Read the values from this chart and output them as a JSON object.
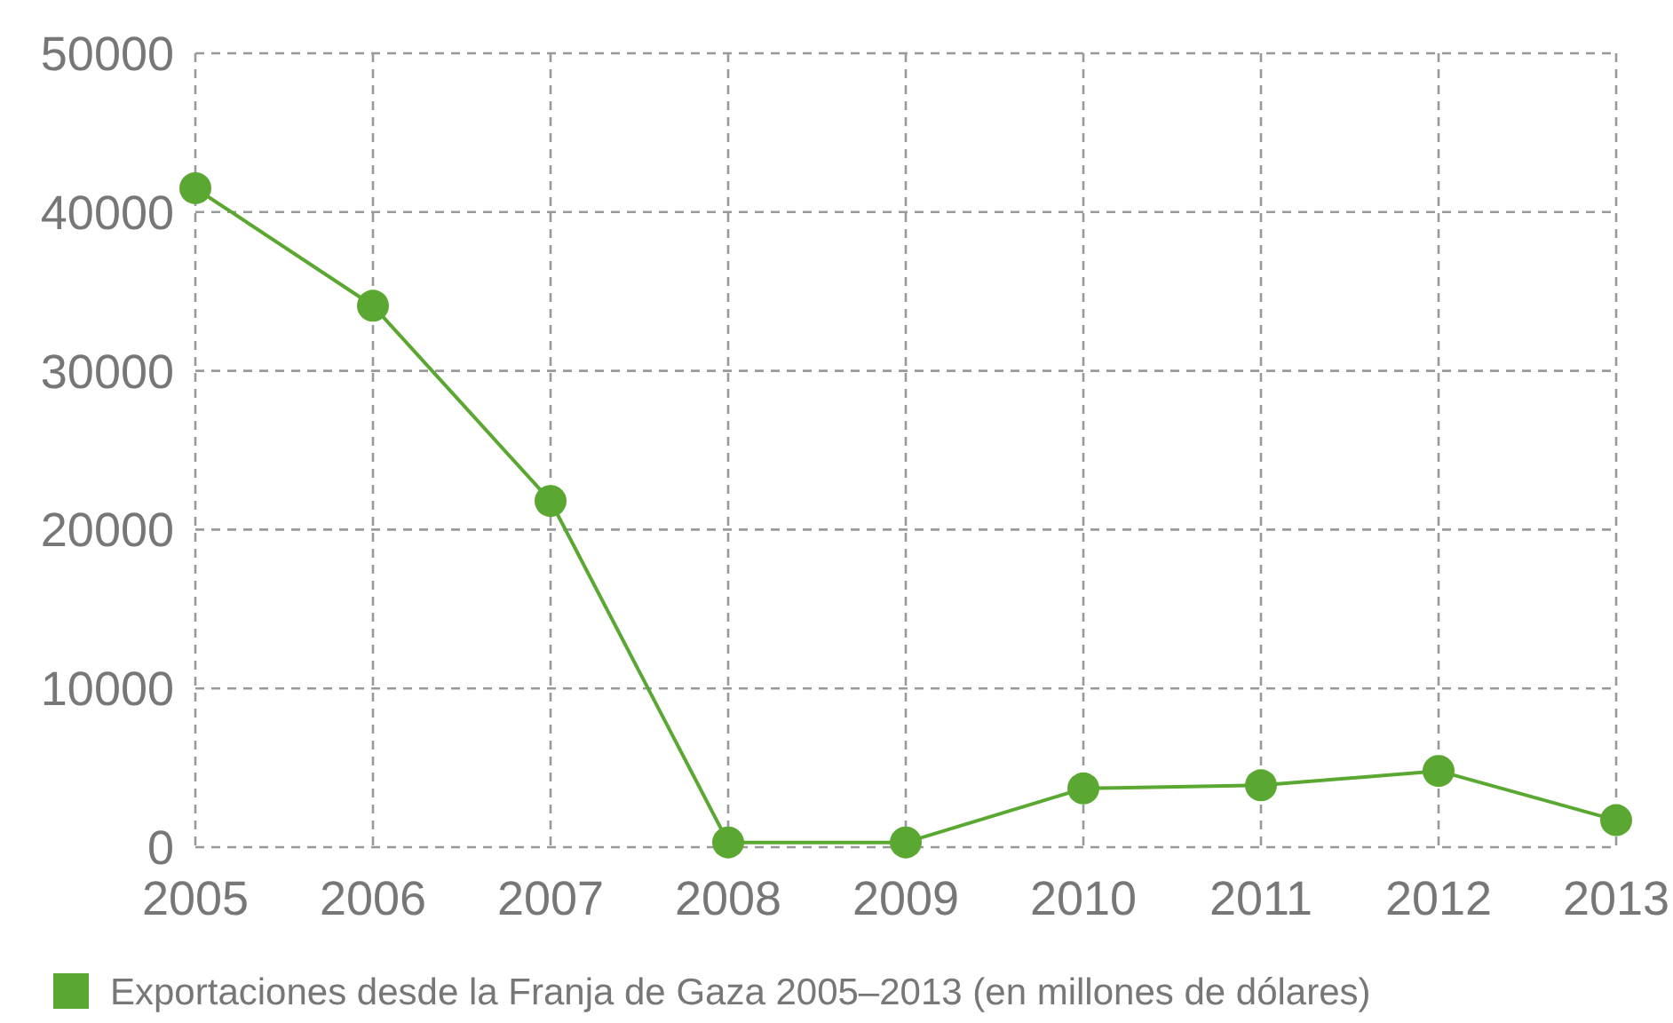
{
  "chart_data": {
    "type": "line",
    "categories": [
      "2005",
      "2006",
      "2007",
      "2008",
      "2009",
      "2010",
      "2011",
      "2012",
      "2013"
    ],
    "series": [
      {
        "name": "Exportaciones desde la Franja de Gaza 2005–2013 (en millones de dólares)",
        "color": "#5aa832",
        "values": [
          41500,
          34100,
          21800,
          300,
          300,
          3700,
          3900,
          4800,
          1700
        ]
      }
    ],
    "ylim": [
      0,
      50000
    ],
    "yticks": [
      0,
      10000,
      20000,
      30000,
      40000,
      50000
    ],
    "grid": true,
    "legend": "bottom",
    "marker": "circle",
    "line_style": "solid"
  }
}
